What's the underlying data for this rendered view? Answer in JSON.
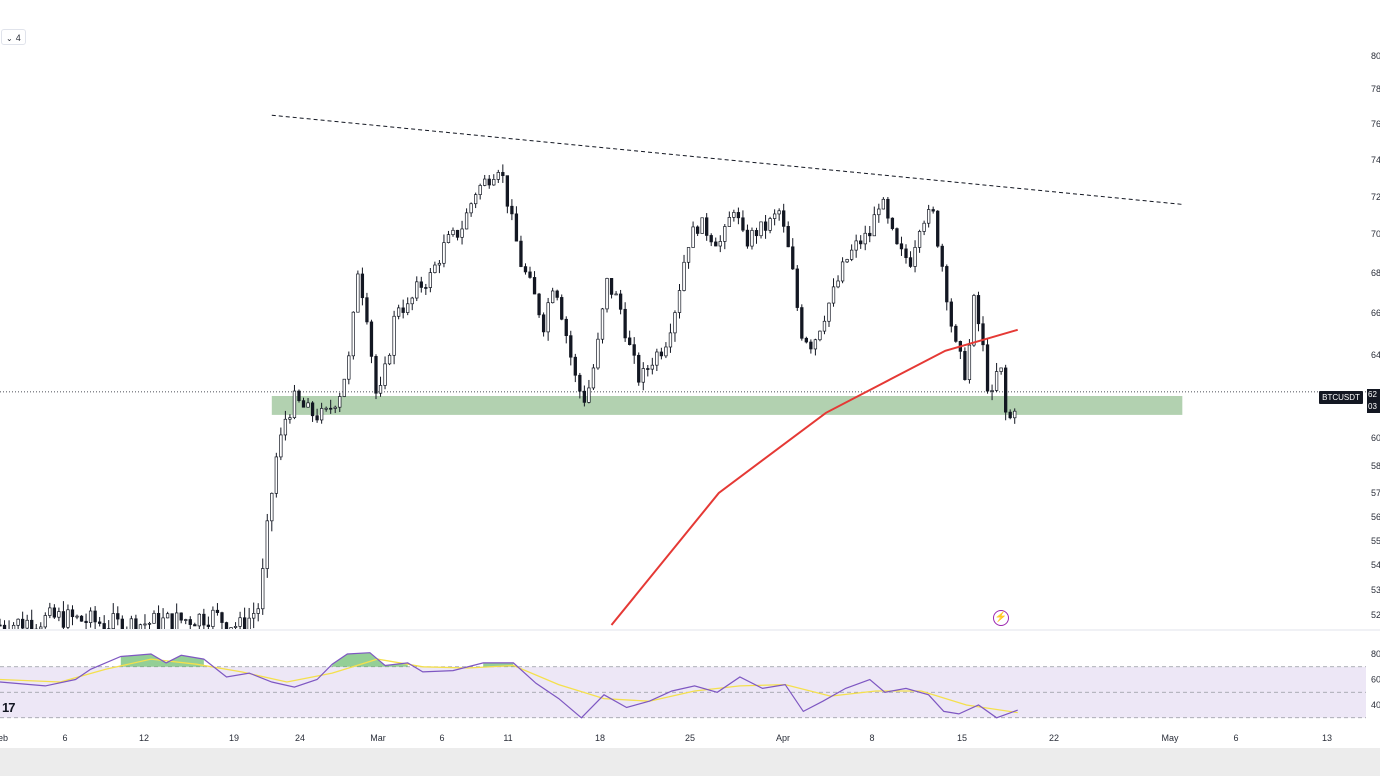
{
  "toolbar": {
    "interval_chevron": "⌄",
    "interval_label": "4"
  },
  "symbol_badge": "BTCUSDT",
  "price_badge": {
    "line1": "62",
    "line2": "03"
  },
  "logo_text": "17",
  "alert_icon": "⚡",
  "chart_data": {
    "type": "candlestick",
    "symbol": "BTCUSDT",
    "price_axis_labels": [
      "80",
      "78",
      "76",
      "74",
      "72",
      "70",
      "68",
      "66",
      "64",
      "62",
      "60",
      "58",
      "57",
      "56",
      "55",
      "54",
      "53",
      "52"
    ],
    "rsi_axis_labels": [
      "80",
      "60",
      "40"
    ],
    "time_axis_labels": [
      "eb",
      "6",
      "12",
      "19",
      "24",
      "Mar",
      "6",
      "11",
      "18",
      "25",
      "Apr",
      "8",
      "15",
      "22",
      "May",
      "6",
      "13"
    ],
    "close_series": [
      [
        0,
        51.6
      ],
      [
        4,
        51.9
      ],
      [
        8,
        51.6
      ],
      [
        12,
        51.8
      ],
      [
        14,
        52.0
      ],
      [
        16,
        51.5
      ],
      [
        17.2,
        52.4
      ],
      [
        17.8,
        56.0
      ],
      [
        18.3,
        58.6
      ],
      [
        18.8,
        60.8
      ],
      [
        19.5,
        61.8
      ],
      [
        20.5,
        61.2
      ],
      [
        21.5,
        61.0
      ],
      [
        22.5,
        62.2
      ],
      [
        23.2,
        64.0
      ],
      [
        23.7,
        68.2
      ],
      [
        24.3,
        66.0
      ],
      [
        25.0,
        61.5
      ],
      [
        25.6,
        63.5
      ],
      [
        26.3,
        66.5
      ],
      [
        27.0,
        66.2
      ],
      [
        27.7,
        67.3
      ],
      [
        28.5,
        67.8
      ],
      [
        29.5,
        69.5
      ],
      [
        30.5,
        70.2
      ],
      [
        31.5,
        72.3
      ],
      [
        32.3,
        73.0
      ],
      [
        33.1,
        73.8
      ],
      [
        33.8,
        71.0
      ],
      [
        34.5,
        68.5
      ],
      [
        35.3,
        67.0
      ],
      [
        36.0,
        65.5
      ],
      [
        36.7,
        67.8
      ],
      [
        37.5,
        65.0
      ],
      [
        38.2,
        62.5
      ],
      [
        38.8,
        61.8
      ],
      [
        39.5,
        64.0
      ],
      [
        40.2,
        67.5
      ],
      [
        41.0,
        66.5
      ],
      [
        41.8,
        64.0
      ],
      [
        42.4,
        62.7
      ],
      [
        43.2,
        63.8
      ],
      [
        44.0,
        64.5
      ],
      [
        44.8,
        66.5
      ],
      [
        45.5,
        69.5
      ],
      [
        46.3,
        70.6
      ],
      [
        47.0,
        70.0
      ],
      [
        47.8,
        69.5
      ],
      [
        48.6,
        71.5
      ],
      [
        49.3,
        69.5
      ],
      [
        50.0,
        70.1
      ],
      [
        50.8,
        70.4
      ],
      [
        51.6,
        71.2
      ],
      [
        52.4,
        68.5
      ],
      [
        53.0,
        65.2
      ],
      [
        53.8,
        64.5
      ],
      [
        54.5,
        65.8
      ],
      [
        55.2,
        67.0
      ],
      [
        56.0,
        68.6
      ],
      [
        56.8,
        69.5
      ],
      [
        57.6,
        70.0
      ],
      [
        58.3,
        72.0
      ],
      [
        58.8,
        70.6
      ],
      [
        59.5,
        69.0
      ],
      [
        60.3,
        68.7
      ],
      [
        61.0,
        70.9
      ],
      [
        61.8,
        71.0
      ],
      [
        62.5,
        68.0
      ],
      [
        63.2,
        64.5
      ],
      [
        64.0,
        63.0
      ],
      [
        64.5,
        66.5
      ],
      [
        65.0,
        64.8
      ],
      [
        65.6,
        61.5
      ],
      [
        66.2,
        63.8
      ],
      [
        66.7,
        60.5
      ],
      [
        67.1,
        61.3
      ],
      [
        67.4,
        62.2
      ]
    ],
    "moving_average_red": [
      [
        40.5,
        51.6
      ],
      [
        47.6,
        57.0
      ],
      [
        54.7,
        61.2
      ],
      [
        62.6,
        64.2
      ],
      [
        67.4,
        65.2
      ]
    ],
    "resistance_trendline_dashed": [
      [
        18.0,
        76.5
      ],
      [
        78.3,
        71.6
      ]
    ],
    "support_zone": {
      "low": 61.1,
      "high": 62.0,
      "x_start": 18.0,
      "x_end": 78.3
    },
    "current_price_line": 62.2,
    "rsi": {
      "upper_band": 70,
      "middle_band": 50,
      "lower_band": 30,
      "values": [
        [
          0,
          58
        ],
        [
          3,
          55
        ],
        [
          5,
          60
        ],
        [
          6,
          68
        ],
        [
          8,
          78
        ],
        [
          10,
          80
        ],
        [
          11,
          73
        ],
        [
          12,
          79
        ],
        [
          13.5,
          76
        ],
        [
          15,
          62
        ],
        [
          16.5,
          65
        ],
        [
          18,
          58
        ],
        [
          19.5,
          54
        ],
        [
          21,
          60
        ],
        [
          22,
          72
        ],
        [
          23,
          80
        ],
        [
          24.5,
          81
        ],
        [
          25.5,
          71
        ],
        [
          27,
          73
        ],
        [
          28,
          66
        ],
        [
          30,
          67
        ],
        [
          32,
          73
        ],
        [
          34,
          73
        ],
        [
          35.5,
          57
        ],
        [
          37,
          45
        ],
        [
          38.5,
          30
        ],
        [
          40,
          48
        ],
        [
          41.5,
          38
        ],
        [
          43,
          43
        ],
        [
          44.5,
          51
        ],
        [
          46,
          55
        ],
        [
          47.5,
          50
        ],
        [
          49,
          62
        ],
        [
          50.5,
          53
        ],
        [
          52,
          56
        ],
        [
          53.2,
          35
        ],
        [
          54.5,
          43
        ],
        [
          56,
          53
        ],
        [
          57.6,
          60
        ],
        [
          58.6,
          50
        ],
        [
          60,
          53
        ],
        [
          61.5,
          48
        ],
        [
          62.5,
          35
        ],
        [
          63.5,
          33
        ],
        [
          64.8,
          40
        ],
        [
          66,
          30
        ],
        [
          67.4,
          36
        ]
      ],
      "signal": [
        [
          0,
          60
        ],
        [
          4,
          58
        ],
        [
          7,
          68
        ],
        [
          10,
          76
        ],
        [
          13,
          72
        ],
        [
          16,
          66
        ],
        [
          19,
          58
        ],
        [
          22,
          65
        ],
        [
          25,
          76
        ],
        [
          28,
          70
        ],
        [
          31,
          69
        ],
        [
          34,
          71
        ],
        [
          37,
          56
        ],
        [
          40,
          45
        ],
        [
          43,
          43
        ],
        [
          46,
          51
        ],
        [
          49,
          55
        ],
        [
          52,
          56
        ],
        [
          55,
          47
        ],
        [
          58,
          51
        ],
        [
          61,
          51
        ],
        [
          64,
          40
        ],
        [
          67.4,
          34
        ]
      ]
    },
    "colors": {
      "candle": "#131722",
      "moving_average": "#e53935",
      "support_zone": "#7fb37c",
      "rsi_line": "#7e57c2",
      "rsi_signal": "#f4e04d",
      "rsi_band_fill": "#ede7f6",
      "rsi_overbought_fill": "#66bb6a"
    }
  }
}
